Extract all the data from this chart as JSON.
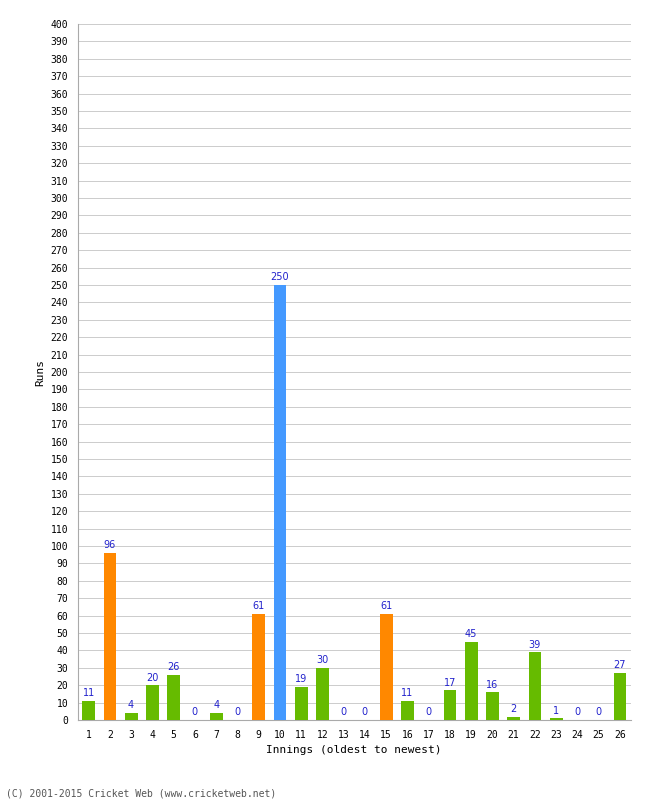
{
  "xlabel": "Innings (oldest to newest)",
  "ylabel": "Runs",
  "footer": "(C) 2001-2015 Cricket Web (www.cricketweb.net)",
  "innings": [
    1,
    2,
    3,
    4,
    5,
    6,
    7,
    8,
    9,
    10,
    11,
    12,
    13,
    14,
    15,
    16,
    17,
    18,
    19,
    20,
    21,
    22,
    23,
    24,
    25,
    26
  ],
  "values": [
    11,
    96,
    4,
    20,
    26,
    0,
    4,
    0,
    61,
    250,
    19,
    30,
    0,
    0,
    61,
    11,
    0,
    17,
    45,
    16,
    2,
    39,
    1,
    0,
    0,
    27
  ],
  "colors": [
    "#66bb00",
    "#ff8800",
    "#66bb00",
    "#66bb00",
    "#66bb00",
    "#66bb00",
    "#66bb00",
    "#66bb00",
    "#ff8800",
    "#4499ff",
    "#66bb00",
    "#66bb00",
    "#66bb00",
    "#66bb00",
    "#ff8800",
    "#66bb00",
    "#66bb00",
    "#66bb00",
    "#66bb00",
    "#66bb00",
    "#66bb00",
    "#66bb00",
    "#66bb00",
    "#66bb00",
    "#66bb00",
    "#66bb00"
  ],
  "ylim": [
    0,
    400
  ],
  "yticks": [
    0,
    10,
    20,
    30,
    40,
    50,
    60,
    70,
    80,
    90,
    100,
    110,
    120,
    130,
    140,
    150,
    160,
    170,
    180,
    190,
    200,
    210,
    220,
    230,
    240,
    250,
    260,
    270,
    280,
    290,
    300,
    310,
    320,
    330,
    340,
    350,
    360,
    370,
    380,
    390,
    400
  ],
  "background_color": "#ffffff",
  "grid_color": "#cccccc",
  "label_color": "#2222cc",
  "bar_width": 0.6
}
